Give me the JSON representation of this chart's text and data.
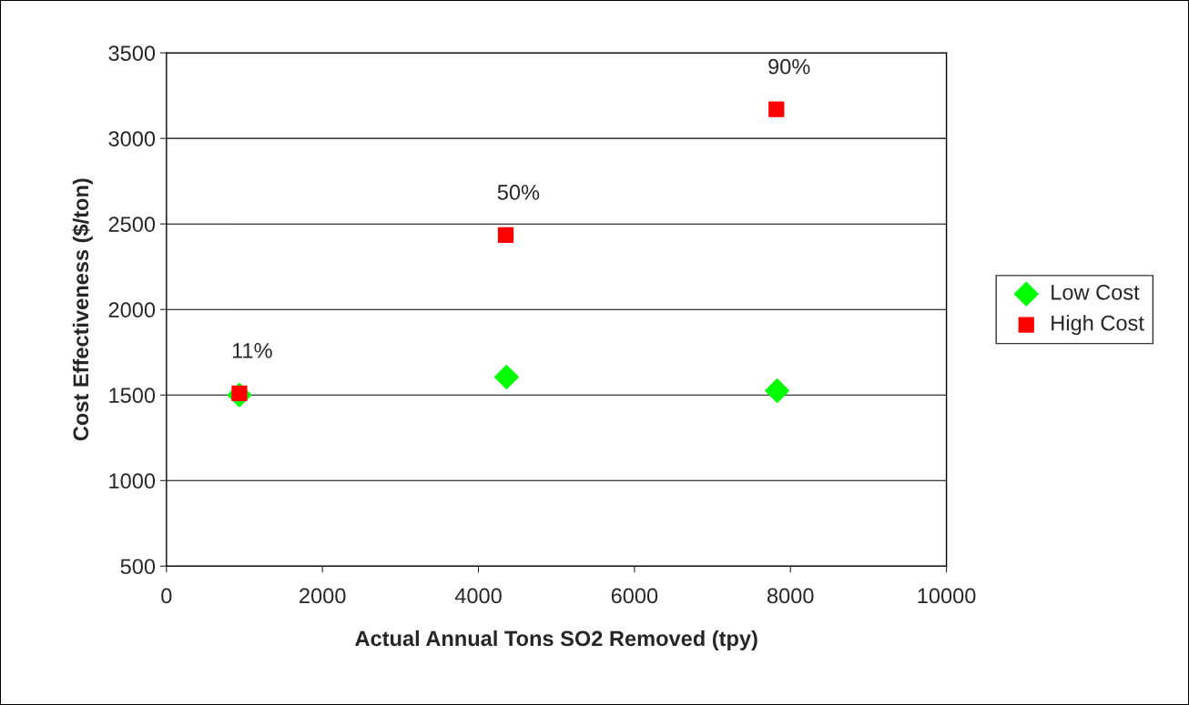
{
  "chart_data": {
    "type": "scatter",
    "xlabel": "Actual Annual Tons SO2 Removed (tpy)",
    "ylabel": "Cost Effectiveness ($/ton)",
    "series": [
      {
        "name": "Low Cost",
        "color": "#00ff00",
        "marker": "diamond",
        "x": [
          935,
          4360,
          7830
        ],
        "values": [
          1500,
          1605,
          1525
        ]
      },
      {
        "name": "High Cost",
        "color": "#ff0000",
        "marker": "square",
        "x": [
          935,
          4350,
          7820
        ],
        "values": [
          1510,
          2435,
          3170
        ]
      }
    ],
    "annotations": [
      {
        "text": "11%",
        "x": 935,
        "y": 1510
      },
      {
        "text": "50%",
        "x": 4350,
        "y": 2435
      },
      {
        "text": "90%",
        "x": 7820,
        "y": 3170
      }
    ],
    "xlim": [
      0,
      10000
    ],
    "xticks": [
      0,
      2000,
      4000,
      6000,
      8000,
      10000
    ],
    "ylim": [
      500,
      3500
    ],
    "yticks": [
      500,
      1000,
      1500,
      2000,
      2500,
      3000,
      3500
    ],
    "grid": "y",
    "legend": "right"
  }
}
